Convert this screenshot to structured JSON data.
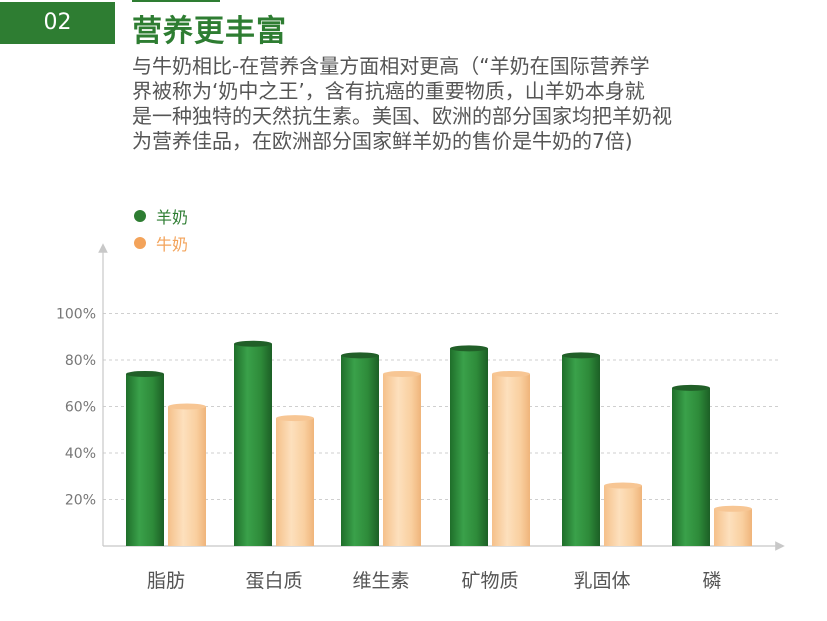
{
  "header": {
    "badge": "02",
    "title": "营养更丰富",
    "description_lines": [
      "与牛奶相比-在营养含量方面相对更高（“羊奶在国际营养学",
      "界被称为‘奶中之王’，含有抗癌的重要物质，山羊奶本身就",
      "是一种独特的天然抗生素。美国、欧洲的部分国家均把羊奶视",
      "为营养佳品，在欧洲部分国家鲜羊奶的售价是牛奶的7倍)"
    ]
  },
  "colors": {
    "accent": "#2e7d32",
    "goat": "#2e8b3a",
    "cow": "#f3a35a"
  },
  "chart_data": {
    "type": "bar",
    "title": "",
    "xlabel": "",
    "ylabel": "",
    "categories": [
      "脂肪",
      "蛋白质",
      "维生素",
      "矿物质",
      "乳固体",
      "磷"
    ],
    "series": [
      {
        "name": "羊奶",
        "values": [
          74,
          87,
          82,
          85,
          82,
          68
        ]
      },
      {
        "name": "牛奶",
        "values": [
          60,
          55,
          74,
          74,
          26,
          16
        ]
      }
    ],
    "y_ticks": [
      "20%",
      "40%",
      "60%",
      "80%",
      "100%"
    ],
    "ylim": [
      0,
      120
    ],
    "grid": true,
    "legend_position": "top-left"
  }
}
